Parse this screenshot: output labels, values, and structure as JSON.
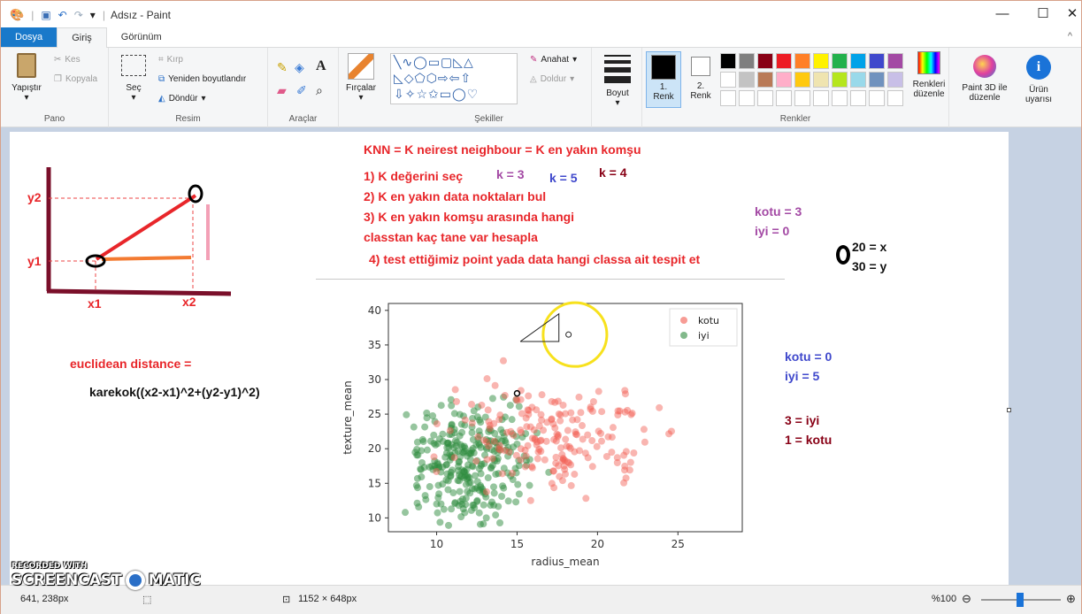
{
  "window": {
    "title": "Adsız - Paint"
  },
  "tabs": [
    "Dosya",
    "Giriş",
    "Görünüm"
  ],
  "ribbon": {
    "pano": {
      "label": "Pano",
      "paste": "Yapıştır",
      "cut": "Kes",
      "copy": "Kopyala"
    },
    "resim": {
      "label": "Resim",
      "select": "Seç",
      "crop": "Kırp",
      "resize": "Yeniden boyutlandır",
      "rotate": "Döndür"
    },
    "araclar": {
      "label": "Araçlar"
    },
    "brushes": "Fırçalar",
    "sekiller": {
      "label": "Şekiller",
      "outline": "Anahat",
      "fill": "Doldur"
    },
    "size": "Boyut",
    "colors": {
      "label": "Renkler",
      "color1": "1.\nRenk",
      "color2": "2.\nRenk",
      "edit": "Renkleri düzenle",
      "palette": [
        "#000000",
        "#7f7f7f",
        "#880015",
        "#ed1c24",
        "#ff7f27",
        "#fff200",
        "#22b14c",
        "#00a2e8",
        "#3f48cc",
        "#a349a4",
        "#ffffff",
        "#c3c3c3",
        "#b97a57",
        "#ffaec9",
        "#ffc90e",
        "#efe4b0",
        "#b5e61d",
        "#99d9ea",
        "#7092be",
        "#c8bfe7"
      ]
    },
    "paint3d": "Paint 3D ile düzenle",
    "product_alert": "Ürün uyarısı"
  },
  "canvas_text": {
    "knn_title": "KNN = K neirest neighbour  = K en yakın komşu",
    "step1": "1) K  değerini seç",
    "k3": "k = 3",
    "k5": "k = 5",
    "k4": "k = 4",
    "step2": "2) K en yakın data noktaları bul",
    "step3a": "3) K en yakın komşu arasında hangi",
    "step3b": "classtan kaç tane var hesapla",
    "step4": "4) test ettiğimiz point yada data hangi classa ait tespit et",
    "kotu3": "kotu = 3",
    "iyi0": "iyi = 0",
    "x20": "20 = x",
    "y30": "30 = y",
    "y2": "y2",
    "y1": "y1",
    "x1": "x1",
    "x2": "x2",
    "euclid": "euclidean distance =",
    "formula": "karekok((x2-x1)^2+(y2-y1)^2)",
    "kotu0": "kotu = 0",
    "iyi5": "iyi = 5",
    "r3iyi": "3 = iyi",
    "r1kotu": "1 = kotu"
  },
  "chart_data": {
    "type": "scatter",
    "xlabel": "radius_mean",
    "ylabel": "texture_mean",
    "xlim": [
      7,
      29
    ],
    "ylim": [
      8,
      41
    ],
    "xticks": [
      10,
      15,
      20,
      25
    ],
    "yticks": [
      10,
      15,
      20,
      25,
      30,
      35,
      40
    ],
    "legend_position": "top-right",
    "series": [
      {
        "name": "kotu",
        "color": "#f25a4f"
      },
      {
        "name": "iyi",
        "color": "#2e8b3d"
      }
    ]
  },
  "status": {
    "position": "641, 238px",
    "size": "1152 × 648px",
    "zoom": "%100"
  },
  "watermark": {
    "line1": "RECORDED WITH",
    "line2": "SCREENCAST",
    "line3": "MATIC"
  }
}
